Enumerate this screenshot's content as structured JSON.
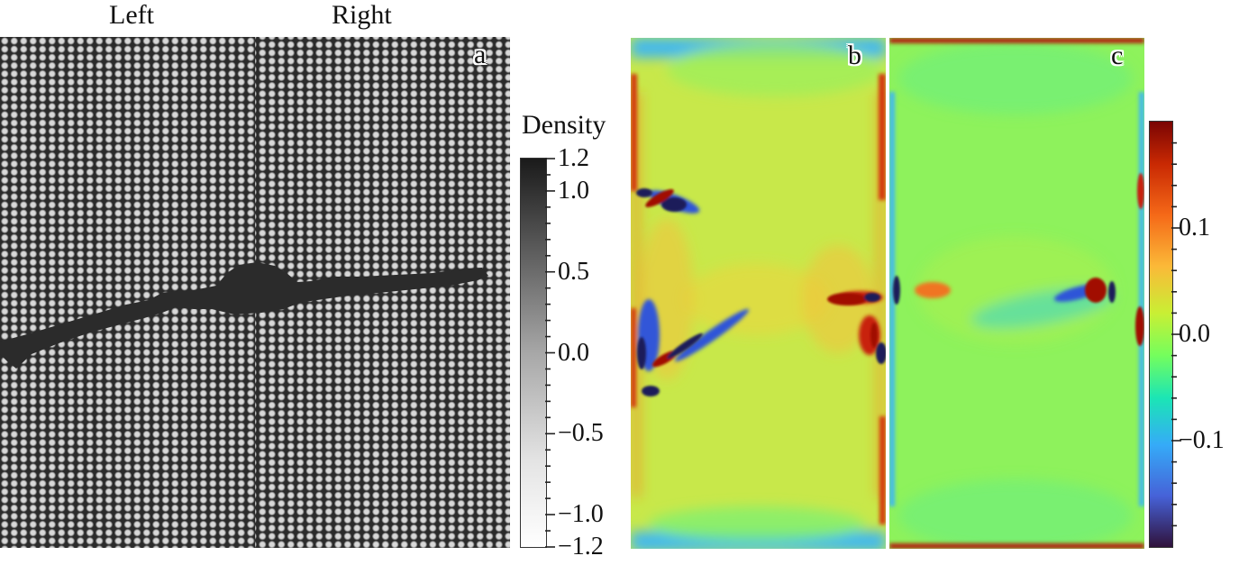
{
  "header": {
    "left": "Left",
    "right": "Right"
  },
  "panels": {
    "a": {
      "label": "a"
    },
    "b": {
      "label": "b"
    },
    "c": {
      "label": "c"
    }
  },
  "density_colorbar": {
    "title": "Density",
    "min": -1.2,
    "max": 1.2,
    "major_ticks": [
      {
        "value": 1.2,
        "label": "1.2"
      },
      {
        "value": 1.0,
        "label": "1.0"
      },
      {
        "value": 0.5,
        "label": "0.5"
      },
      {
        "value": 0.0,
        "label": "0.0"
      },
      {
        "value": -0.5,
        "label": "−0.5"
      },
      {
        "value": -1.0,
        "label": "−1.0"
      },
      {
        "value": -1.2,
        "label": "−1.2"
      }
    ],
    "minor_ticks": [
      -1.1,
      -0.9,
      -0.8,
      -0.7,
      -0.6,
      -0.4,
      -0.3,
      -0.2,
      -0.1,
      0.1,
      0.2,
      0.3,
      0.4,
      0.6,
      0.7,
      0.8,
      0.9,
      1.1
    ],
    "colors": {
      "low": "#ffffff",
      "high": "#1a1a1a"
    }
  },
  "strain_colorbar": {
    "min": -0.2,
    "max": 0.2,
    "major_ticks": [
      {
        "value": 0.1,
        "label": "0.1"
      },
      {
        "value": 0.0,
        "label": "0.0"
      },
      {
        "value": -0.1,
        "label": "−0.1"
      }
    ],
    "minor_ticks": [
      -0.18,
      -0.16,
      -0.14,
      -0.12,
      -0.08,
      -0.06,
      -0.04,
      -0.02,
      0.02,
      0.04,
      0.06,
      0.08,
      0.12,
      0.14,
      0.16,
      0.18
    ],
    "colors": [
      "#30123b",
      "#4662d8",
      "#35abf8",
      "#1be5b5",
      "#74fe5d",
      "#c9ef34",
      "#fbb938",
      "#f56918",
      "#c92903",
      "#7a0403"
    ]
  }
}
